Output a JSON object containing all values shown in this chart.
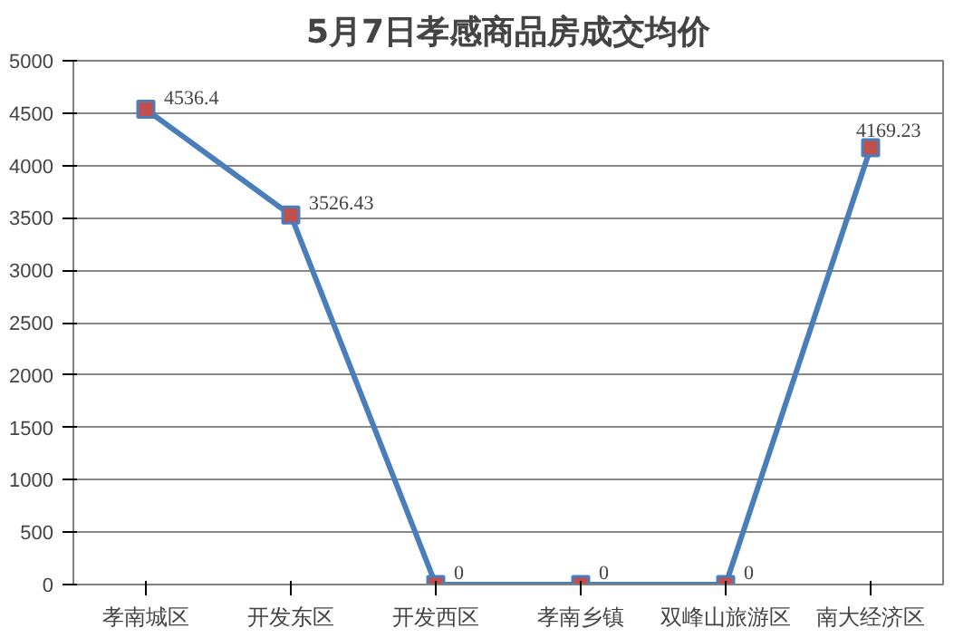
{
  "chart_data": {
    "type": "line",
    "title": "5月7日孝感商品房成交均价",
    "categories": [
      "孝南城区",
      "开发东区",
      "开发西区",
      "孝南乡镇",
      "双峰山旅游区",
      "南大经济区"
    ],
    "series": [
      {
        "color": "#4a7ebb",
        "colors": [
          "#c0504d",
          "#c0504d",
          "#c0504d",
          "#c0504d",
          "#c0504d",
          "#c0504d"
        ],
        "values": [
          4536.4,
          3526.43,
          0,
          0,
          0,
          4169.23
        ]
      }
    ],
    "ylim": [
      0,
      5000
    ],
    "yticks": [
      0,
      500,
      1000,
      1500,
      2000,
      2500,
      3000,
      3500,
      4000,
      4500,
      5000
    ],
    "grid": "y",
    "marker": "square",
    "line_style": "solid",
    "data_labels": true
  }
}
